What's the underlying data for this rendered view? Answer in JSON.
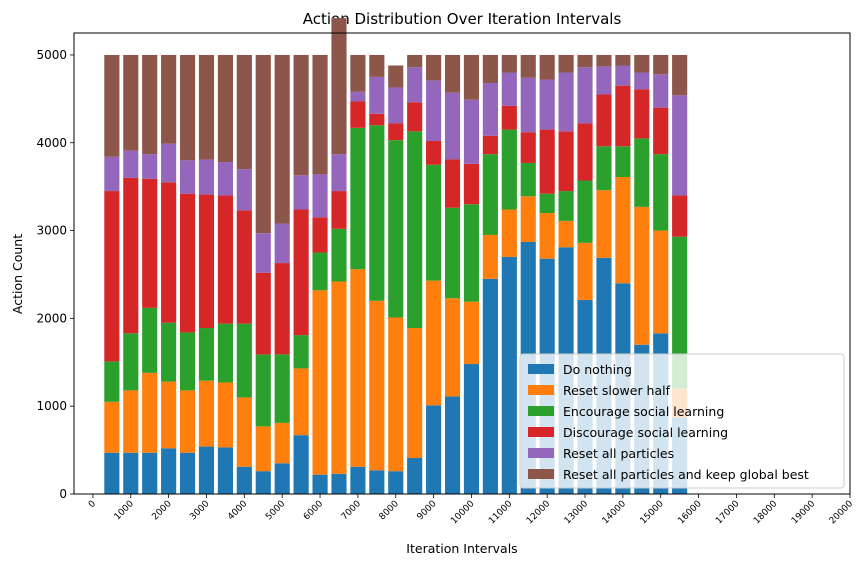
{
  "chart_data": {
    "type": "bar",
    "stacked": true,
    "title": "Action Distribution Over Iteration Intervals",
    "xlabel": "Iteration Intervals",
    "ylabel": "Action Count",
    "xlim": [
      -500,
      20000
    ],
    "ylim": [
      0,
      5250
    ],
    "x_ticks": [
      0,
      1000,
      2000,
      3000,
      4000,
      5000,
      6000,
      7000,
      8000,
      9000,
      10000,
      11000,
      12000,
      13000,
      14000,
      15000,
      16000,
      17000,
      18000,
      19000,
      20000
    ],
    "x_tick_labels": [
      "0",
      "1000",
      "2000",
      "3000",
      "4000",
      "5000",
      "6000",
      "7000",
      "8000",
      "9000",
      "10000",
      "11000",
      "12000",
      "13000",
      "14000",
      "15000",
      "16000",
      "17000",
      "18000",
      "19000",
      "20000"
    ],
    "y_ticks": [
      0,
      1000,
      2000,
      3000,
      4000,
      5000
    ],
    "y_tick_labels": [
      "0",
      "1000",
      "2000",
      "3000",
      "4000",
      "5000"
    ],
    "bar_width": 400,
    "grid": false,
    "legend_position": "lower right",
    "x": [
      500,
      1000,
      1500,
      2000,
      2500,
      3000,
      3500,
      4000,
      4500,
      5000,
      5500,
      6000,
      6500,
      7000,
      7500,
      8000,
      8500,
      9000,
      9500,
      10000,
      10500,
      11000,
      11500,
      12000,
      12500,
      13000,
      13500,
      14000,
      14500,
      15000,
      15500
    ],
    "series": [
      {
        "name": "Do nothing",
        "color": "#1f77b4",
        "values": [
          470,
          470,
          470,
          520,
          470,
          540,
          530,
          310,
          260,
          350,
          670,
          220,
          230,
          310,
          270,
          260,
          410,
          1010,
          1110,
          1480,
          2450,
          2700,
          2870,
          2680,
          2810,
          2210,
          2690,
          2400,
          1700,
          1830,
          870
        ]
      },
      {
        "name": "Reset slower half",
        "color": "#ff7f0e",
        "values": [
          580,
          710,
          910,
          760,
          710,
          750,
          740,
          790,
          510,
          460,
          760,
          2100,
          2190,
          2250,
          1930,
          1750,
          1480,
          1420,
          1120,
          710,
          500,
          540,
          520,
          520,
          300,
          650,
          770,
          1210,
          1570,
          1170,
          330
        ]
      },
      {
        "name": "Encourage social learning",
        "color": "#2ca02c",
        "values": [
          460,
          650,
          740,
          670,
          660,
          600,
          670,
          840,
          820,
          780,
          380,
          430,
          600,
          1610,
          2000,
          2020,
          2240,
          1320,
          1030,
          1110,
          920,
          910,
          380,
          220,
          340,
          710,
          500,
          350,
          780,
          870,
          1730
        ]
      },
      {
        "name": "Discourage social learning",
        "color": "#d62728",
        "values": [
          1940,
          1770,
          1470,
          1600,
          1580,
          1520,
          1460,
          1290,
          930,
          1040,
          1430,
          400,
          430,
          300,
          130,
          190,
          330,
          270,
          550,
          460,
          210,
          270,
          350,
          730,
          680,
          650,
          590,
          690,
          560,
          530,
          470
        ]
      },
      {
        "name": "Reset all particles",
        "color": "#9467bd",
        "values": [
          390,
          310,
          280,
          440,
          380,
          400,
          380,
          470,
          450,
          450,
          390,
          490,
          420,
          110,
          420,
          410,
          400,
          690,
          760,
          730,
          600,
          380,
          620,
          570,
          670,
          640,
          320,
          230,
          190,
          380,
          1140
        ]
      },
      {
        "name": "Reset all particles and keep global best",
        "color": "#8c564b",
        "values": [
          1160,
          1090,
          1130,
          1010,
          1200,
          1190,
          1220,
          1300,
          2030,
          1920,
          1370,
          1360,
          1550,
          420,
          250,
          250,
          140,
          290,
          430,
          510,
          320,
          200,
          260,
          280,
          200,
          140,
          130,
          120,
          200,
          220,
          460
        ]
      }
    ]
  }
}
